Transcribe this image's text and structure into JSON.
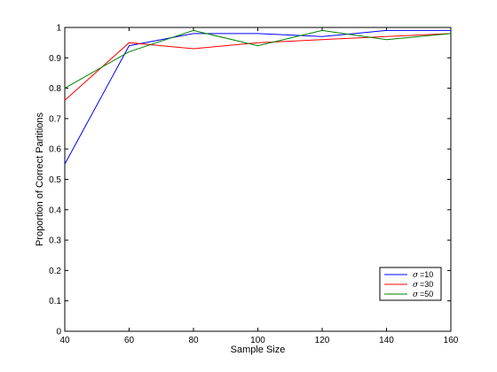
{
  "chart_data": {
    "type": "line",
    "title": "",
    "xlabel": "Sample Size",
    "ylabel": "Proportion of Correct Partitions",
    "xlim": [
      40,
      160
    ],
    "ylim": [
      0,
      1
    ],
    "x": [
      40,
      60,
      80,
      100,
      120,
      140,
      160
    ],
    "xticks": [
      "40",
      "60",
      "80",
      "100",
      "120",
      "140",
      "160"
    ],
    "yticks": [
      "0",
      "0.1",
      "0.2",
      "0.3",
      "0.4",
      "0.5",
      "0.6",
      "0.7",
      "0.8",
      "0.9",
      "1"
    ],
    "grid": false,
    "legend_position": "bottom-right",
    "series": [
      {
        "name": "σ =10",
        "symbol": "σ",
        "label": "=10",
        "color": "#0000ff",
        "values": [
          0.55,
          0.94,
          0.98,
          0.98,
          0.97,
          0.99,
          0.99
        ]
      },
      {
        "name": "σ =30",
        "symbol": "σ",
        "label": "=30",
        "color": "#ff0000",
        "values": [
          0.76,
          0.95,
          0.93,
          0.95,
          0.96,
          0.97,
          0.98
        ]
      },
      {
        "name": "σ =50",
        "symbol": "σ",
        "label": "=50",
        "color": "#008000",
        "values": [
          0.8,
          0.92,
          0.99,
          0.94,
          0.99,
          0.96,
          0.98
        ]
      }
    ]
  }
}
